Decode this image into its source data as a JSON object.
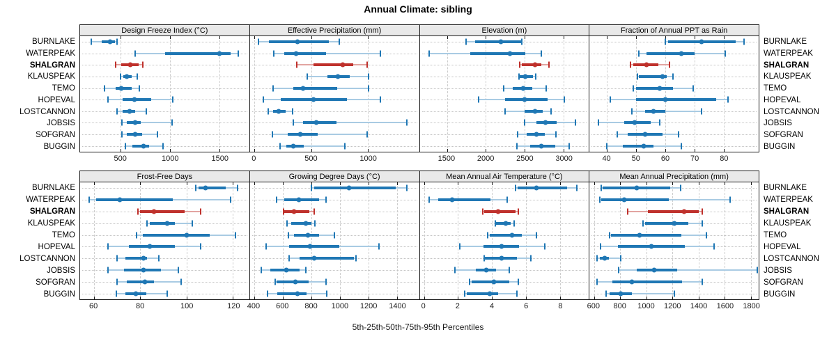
{
  "title": "Annual Climate: sibling",
  "axis_label": "5th-25th-50th-75th-95th Percentiles",
  "highlight_site": "SHALGRAN",
  "sites": [
    "BURNLAKE",
    "WATERPEAK",
    "SHALGRAN",
    "KLAUSPEAK",
    "TEMO",
    "HOPEVAL",
    "LOSTCANNON",
    "JOBSIS",
    "SOFGRAN",
    "BUGGIN"
  ],
  "colors": {
    "series": "#1f77b4",
    "series_light": "#a9cbe3",
    "highlight": "#bf312c",
    "highlight_light": "#e2a4a1",
    "grid": "#cdcdcd",
    "header_bg": "#e9e9e9",
    "border": "#1a1a1a"
  },
  "chart_data": {
    "type": "dot-interval",
    "note": "Each row shows 5th-25th-50th-75th-95th percentiles per site; thick bar = 25th-75th, dot = median",
    "percentile_levels": [
      5,
      25,
      50,
      75,
      95
    ],
    "grid_layout": [
      2,
      4
    ],
    "panels": [
      {
        "title": "Design Freeze Index (°C)",
        "range": [
          90,
          1800
        ],
        "ticks": [
          500,
          1000,
          1500
        ],
        "series": {
          "BURNLAKE": [
            200,
            310,
            390,
            440,
            460
          ],
          "WATERPEAK": [
            650,
            950,
            1500,
            1615,
            1690
          ],
          "SHALGRAN": [
            450,
            505,
            600,
            680,
            725
          ],
          "KLAUSPEAK": [
            500,
            530,
            560,
            610,
            670
          ],
          "TEMO": [
            340,
            450,
            505,
            610,
            690
          ],
          "HOPEVAL": [
            370,
            520,
            640,
            810,
            1030
          ],
          "LOSTCANNON": [
            460,
            520,
            590,
            650,
            760
          ],
          "JOBSIS": [
            510,
            565,
            650,
            705,
            1020
          ],
          "SOFGRAN": [
            510,
            560,
            650,
            720,
            870
          ],
          "BUGGIN": [
            550,
            620,
            730,
            790,
            930
          ]
        }
      },
      {
        "title": "Effective Precipitation (mm)",
        "range": [
          -40,
          1450
        ],
        "ticks": [
          0,
          500,
          1000
        ],
        "series": {
          "BURNLAKE": [
            35,
            125,
            380,
            655,
            745
          ],
          "WATERPEAK": [
            170,
            260,
            365,
            630,
            1110
          ],
          "SHALGRAN": [
            370,
            520,
            780,
            870,
            995
          ],
          "KLAUSPEAK": [
            465,
            640,
            735,
            840,
            1005
          ],
          "TEMO": [
            165,
            345,
            430,
            730,
            1005
          ],
          "HOPEVAL": [
            80,
            230,
            520,
            815,
            1110
          ],
          "LOSTCANNON": [
            120,
            165,
            215,
            275,
            335
          ],
          "JOBSIS": [
            340,
            425,
            545,
            720,
            1340
          ],
          "SOFGRAN": [
            160,
            290,
            405,
            560,
            995
          ],
          "BUGGIN": [
            225,
            280,
            345,
            435,
            795
          ]
        }
      },
      {
        "title": "Elevation (m)",
        "range": [
          1150,
          3325
        ],
        "ticks": [
          1500,
          2000,
          2500,
          3000
        ],
        "series": {
          "BURNLAKE": [
            1750,
            1860,
            2190,
            2450,
            2465
          ],
          "WATERPEAK": [
            1275,
            1800,
            2310,
            2510,
            2710
          ],
          "SHALGRAN": [
            2440,
            2465,
            2635,
            2715,
            2810
          ],
          "KLAUSPEAK": [
            2425,
            2440,
            2505,
            2605,
            2640
          ],
          "TEMO": [
            2230,
            2345,
            2480,
            2600,
            2780
          ],
          "HOPEVAL": [
            1905,
            2245,
            2500,
            2790,
            3010
          ],
          "LOSTCANNON": [
            2245,
            2500,
            2635,
            2730,
            2835
          ],
          "JOBSIS": [
            2500,
            2650,
            2770,
            2915,
            3150
          ],
          "SOFGRAN": [
            2405,
            2525,
            2655,
            2760,
            2900
          ],
          "BUGGIN": [
            2400,
            2570,
            2715,
            2890,
            3070
          ]
        }
      },
      {
        "title": "Fraction of Annual PPT as Rain",
        "range": [
          34,
          92
        ],
        "ticks": [
          40,
          50,
          60,
          70,
          80
        ],
        "series": {
          "BURNLAKE": [
            60,
            61,
            72.5,
            84,
            87
          ],
          "WATERPEAK": [
            51,
            53.5,
            65.5,
            70,
            80.5
          ],
          "SHALGRAN": [
            48,
            49,
            53.5,
            57.5,
            61.5
          ],
          "KLAUSPEAK": [
            50.5,
            51,
            59,
            60.5,
            62.5
          ],
          "TEMO": [
            49,
            50,
            58,
            62.5,
            69.5
          ],
          "HOPEVAL": [
            41,
            50,
            60,
            77.5,
            81.5
          ],
          "LOSTCANNON": [
            48.5,
            53,
            56,
            60,
            72.5
          ],
          "JOBSIS": [
            37,
            46,
            49.5,
            55,
            58
          ],
          "SOFGRAN": [
            43.5,
            47,
            53,
            59,
            64.5
          ],
          "BUGGIN": [
            40,
            45.5,
            52.5,
            56,
            65.5
          ]
        }
      },
      {
        "title": "Frost-Free Days",
        "range": [
          54,
          127
        ],
        "ticks": [
          60,
          80,
          100,
          120
        ],
        "series": {
          "BURNLAKE": [
            104,
            105,
            108,
            117,
            122
          ],
          "WATERPEAK": [
            58,
            61,
            71,
            94,
            119
          ],
          "SHALGRAN": [
            79,
            80,
            86,
            99,
            106
          ],
          "KLAUSPEAK": [
            83,
            84,
            91.5,
            95,
            102.5
          ],
          "TEMO": [
            78.5,
            81,
            100,
            110,
            121
          ],
          "HOPEVAL": [
            66,
            75,
            84,
            95,
            106
          ],
          "LOSTCANNON": [
            70,
            73.5,
            81.5,
            83,
            88
          ],
          "JOBSIS": [
            66,
            73,
            81.5,
            89,
            96.5
          ],
          "SOFGRAN": [
            70,
            74,
            82,
            86,
            97.5
          ],
          "BUGGIN": [
            69.5,
            73.5,
            78,
            82.5,
            91.5
          ]
        }
      },
      {
        "title": "Growing Degree Days (°C)",
        "range": [
          370,
          1555
        ],
        "ticks": [
          400,
          600,
          800,
          1000,
          1200,
          1400
        ],
        "series": {
          "BURNLAKE": [
            800,
            820,
            1065,
            1390,
            1470
          ],
          "WATERPEAK": [
            555,
            610,
            715,
            855,
            905
          ],
          "SHALGRAN": [
            605,
            610,
            680,
            785,
            820
          ],
          "KLAUSPEAK": [
            630,
            660,
            760,
            800,
            825
          ],
          "TEMO": [
            640,
            680,
            775,
            855,
            960
          ],
          "HOPEVAL": [
            485,
            645,
            790,
            995,
            1275
          ],
          "LOSTCANNON": [
            645,
            720,
            820,
            1100,
            1115
          ],
          "JOBSIS": [
            450,
            515,
            625,
            720,
            760
          ],
          "SOFGRAN": [
            545,
            555,
            690,
            780,
            905
          ],
          "BUGGIN": [
            495,
            560,
            705,
            765,
            910
          ]
        }
      },
      {
        "title": "Mean Annual Air Temperature (°C)",
        "range": [
          -0.25,
          9.7
        ],
        "ticks": [
          0,
          2,
          4,
          6,
          8
        ],
        "series": {
          "BURNLAKE": [
            5.4,
            5.5,
            6.6,
            8.4,
            9.0
          ],
          "WATERPEAK": [
            0.3,
            0.85,
            1.65,
            3.9,
            4.9
          ],
          "SHALGRAN": [
            3.45,
            3.55,
            4.35,
            5.4,
            5.55
          ],
          "KLAUSPEAK": [
            4.2,
            4.25,
            4.8,
            5.1,
            5.3
          ],
          "TEMO": [
            3.75,
            3.85,
            5.2,
            5.75,
            6.6
          ],
          "HOPEVAL": [
            2.1,
            3.5,
            4.55,
            5.6,
            7.1
          ],
          "LOSTCANNON": [
            3.55,
            3.6,
            4.55,
            5.45,
            6.3
          ],
          "JOBSIS": [
            1.8,
            3.05,
            3.65,
            4.25,
            5.0
          ],
          "SOFGRAN": [
            2.7,
            2.8,
            4.1,
            5.0,
            5.55
          ],
          "BUGGIN": [
            2.4,
            2.5,
            3.85,
            4.35,
            5.45
          ]
        }
      },
      {
        "title": "Mean Annual Precipitation (mm)",
        "range": [
          565,
          1860
        ],
        "ticks": [
          600,
          800,
          1000,
          1200,
          1400,
          1600,
          1800
        ],
        "series": {
          "BURNLAKE": [
            655,
            665,
            925,
            1185,
            1265
          ],
          "WATERPEAK": [
            645,
            655,
            830,
            1170,
            1640
          ],
          "SHALGRAN": [
            855,
            1010,
            1290,
            1400,
            1430
          ],
          "KLAUSPEAK": [
            975,
            990,
            1215,
            1320,
            1430
          ],
          "TEMO": [
            720,
            730,
            950,
            1270,
            1460
          ],
          "HOPEVAL": [
            650,
            785,
            1040,
            1295,
            1520
          ],
          "LOSTCANNON": [
            625,
            645,
            680,
            715,
            805
          ],
          "JOBSIS": [
            790,
            925,
            1060,
            1235,
            1850
          ],
          "SOFGRAN": [
            625,
            740,
            890,
            1275,
            1430
          ],
          "BUGGIN": [
            690,
            720,
            805,
            890,
            1215
          ]
        }
      }
    ]
  }
}
